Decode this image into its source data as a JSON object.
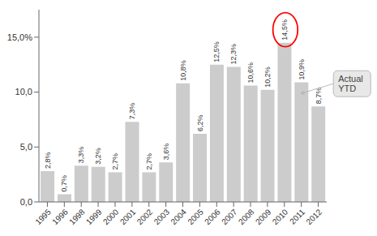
{
  "chart_data": {
    "type": "bar",
    "categories": [
      "1995",
      "1996",
      "1998",
      "1999",
      "2000",
      "2001",
      "2002",
      "2003",
      "2004",
      "2005",
      "2006",
      "2007",
      "2008",
      "2009",
      "2010",
      "2011",
      "2012"
    ],
    "values": [
      2.8,
      0.7,
      3.3,
      3.2,
      2.7,
      7.3,
      2.7,
      3.6,
      10.8,
      6.2,
      12.5,
      12.3,
      10.6,
      10.2,
      14.5,
      10.9,
      8.7
    ],
    "value_labels": [
      "2,8%",
      "0,7%",
      "3,3%",
      "3,2%",
      "2,7%",
      "7,3%",
      "2,7%",
      "3,6%",
      "10,8%",
      "6,2%",
      "12,5%",
      "12,3%",
      "10,6%",
      "10,2%",
      "14,5%",
      "10,9%",
      "8,7%"
    ],
    "data_labels": true,
    "color": "#cccccc",
    "ylim": [
      0,
      17.5
    ],
    "yticks": [
      {
        "value": 0,
        "label": "0,0"
      },
      {
        "value": 5,
        "label": "5,0"
      },
      {
        "value": 10,
        "label": "10,0"
      },
      {
        "value": 15,
        "label": "15,0%"
      }
    ],
    "annotation": "Actual\nYTD",
    "grid": false
  }
}
